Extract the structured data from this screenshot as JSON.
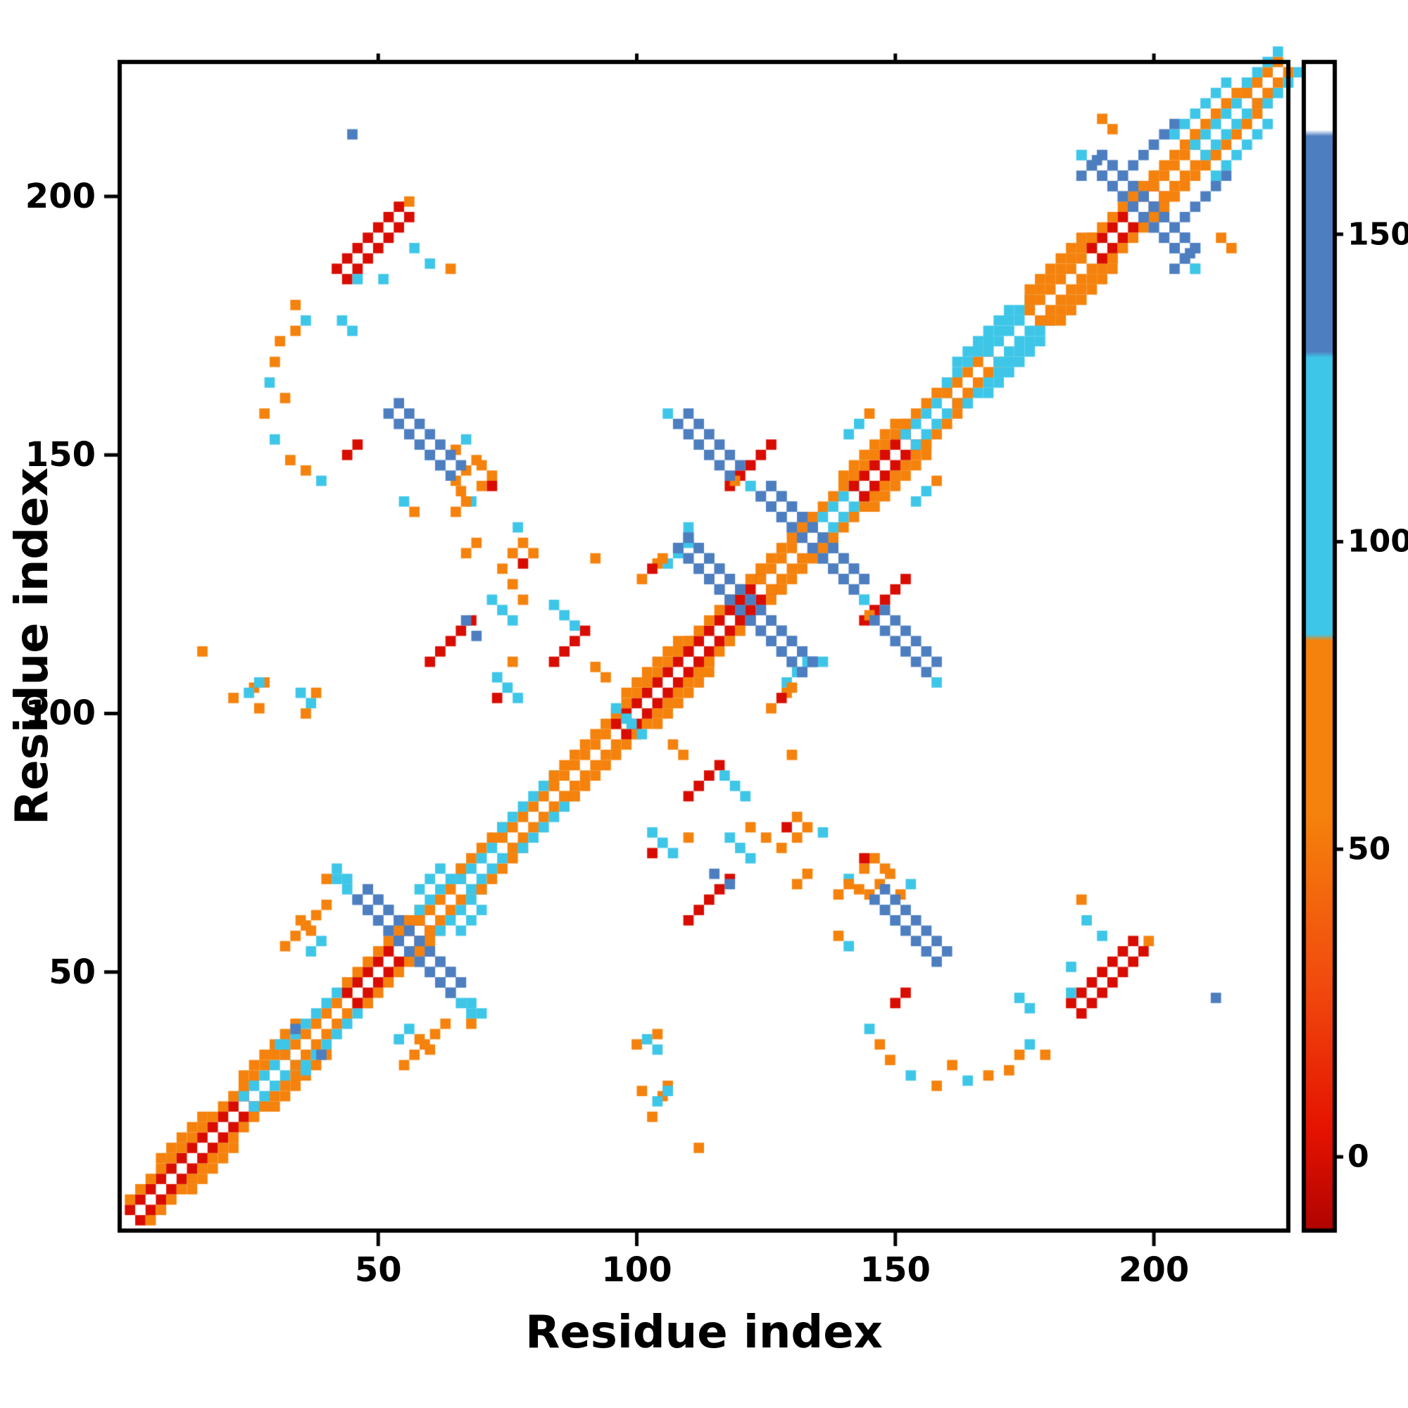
{
  "figure": {
    "background": "#ffffff"
  },
  "chart_data": {
    "type": "heatmap",
    "title": "",
    "xlabel": "Residue index",
    "ylabel": "Residue index",
    "xlim": [
      0,
      226
    ],
    "ylim": [
      0,
      226
    ],
    "xticks": [
      50,
      100,
      150,
      200
    ],
    "yticks": [
      50,
      100,
      150,
      200
    ],
    "grid": false,
    "legend_position": "none",
    "symmetric": true,
    "cell": 2,
    "colormap": [
      {
        "max": 18,
        "color": "#d90c00"
      },
      {
        "max": 42,
        "color": "#ee4009"
      },
      {
        "max": 84,
        "color": "#f5820c"
      },
      {
        "max": 130,
        "color": "#3ec6e8"
      },
      {
        "max": 166,
        "color": "#4d7ec0"
      },
      {
        "max": 9999,
        "color": "#ffffff"
      }
    ],
    "colorbar": {
      "ticks": [
        0,
        50,
        100,
        150
      ],
      "domain": [
        -12,
        178
      ],
      "gradient": [
        [
          -12,
          "#b00300"
        ],
        [
          4,
          "#e41200"
        ],
        [
          28,
          "#f14a0e"
        ],
        [
          56,
          "#f5820c"
        ],
        [
          84,
          "#f5820c"
        ],
        [
          85,
          "#3ec6e8"
        ],
        [
          130,
          "#3ec6e8"
        ],
        [
          131,
          "#4d7ec0"
        ],
        [
          166,
          "#4d7ec0"
        ],
        [
          167,
          "#ffffff"
        ],
        [
          178,
          "#ffffff"
        ]
      ]
    },
    "diagonal_segments": [
      [
        2,
        24,
        10,
        50
      ],
      [
        24,
        32,
        100,
        50
      ],
      [
        32,
        44,
        50,
        100
      ],
      [
        44,
        58,
        10,
        50
      ],
      [
        58,
        66,
        50,
        100
      ],
      [
        66,
        74,
        100,
        50
      ],
      [
        74,
        84,
        50,
        100
      ],
      [
        84,
        96,
        50,
        50
      ],
      [
        96,
        110,
        10,
        50
      ],
      [
        110,
        124,
        10,
        50
      ],
      [
        124,
        134,
        50,
        50
      ],
      [
        134,
        142,
        100,
        50
      ],
      [
        142,
        152,
        10,
        50
      ],
      [
        152,
        160,
        100,
        50
      ],
      [
        160,
        168,
        50,
        100
      ],
      [
        168,
        176,
        100,
        100
      ],
      [
        176,
        188,
        50,
        50
      ],
      [
        188,
        200,
        10,
        50
      ],
      [
        200,
        208,
        50,
        50
      ],
      [
        208,
        218,
        100,
        50
      ],
      [
        218,
        224,
        50,
        100
      ]
    ],
    "antidiagonal_segments": [
      [
        46,
        64,
        64,
        46,
        150,
        2
      ],
      [
        108,
        132,
        132,
        108,
        150,
        2
      ],
      [
        124,
        142,
        142,
        124,
        150,
        2
      ],
      [
        188,
        206,
        206,
        188,
        150,
        2
      ],
      [
        52,
        158,
        64,
        146,
        150,
        2
      ],
      [
        108,
        156,
        118,
        146,
        150,
        2
      ]
    ],
    "offdiagonal_segments": [
      [
        42,
        186,
        54,
        198,
        5,
        2
      ],
      [
        60,
        110,
        67,
        117,
        10,
        1
      ],
      [
        118,
        144,
        126,
        152,
        10,
        1
      ],
      [
        84,
        110,
        89,
        115,
        10,
        1
      ],
      [
        98,
        104,
        108,
        114,
        50,
        1
      ],
      [
        140,
        146,
        150,
        156,
        50,
        1
      ],
      [
        162,
        168,
        172,
        178,
        100,
        1
      ],
      [
        24,
        30,
        34,
        40,
        50,
        1
      ],
      [
        8,
        14,
        16,
        22,
        50,
        1
      ],
      [
        176,
        182,
        186,
        192,
        50,
        1
      ],
      [
        204,
        212,
        214,
        222,
        100,
        1
      ],
      [
        196,
        206,
        204,
        214,
        150,
        1
      ]
    ],
    "points": [
      [
        34,
        179,
        50
      ],
      [
        36,
        176,
        100
      ],
      [
        31,
        172,
        50
      ],
      [
        30,
        168,
        50
      ],
      [
        29,
        164,
        100
      ],
      [
        28,
        158,
        50
      ],
      [
        30,
        153,
        100
      ],
      [
        33,
        149,
        50
      ],
      [
        36,
        147,
        50
      ],
      [
        39,
        145,
        100
      ],
      [
        34,
        174,
        50
      ],
      [
        32,
        161,
        50
      ],
      [
        46,
        184,
        100
      ],
      [
        57,
        190,
        100
      ],
      [
        60,
        187,
        100
      ],
      [
        64,
        186,
        50
      ],
      [
        56,
        199,
        50
      ],
      [
        70,
        148,
        50
      ],
      [
        72,
        146,
        50
      ],
      [
        70,
        144,
        50
      ],
      [
        72,
        144,
        10
      ],
      [
        44,
        150,
        10
      ],
      [
        46,
        152,
        10
      ],
      [
        78,
        133,
        50
      ],
      [
        80,
        131,
        50
      ],
      [
        78,
        129,
        10
      ],
      [
        84,
        121,
        100
      ],
      [
        86,
        119,
        100
      ],
      [
        88,
        117,
        100
      ],
      [
        92,
        109,
        50
      ],
      [
        94,
        107,
        50
      ],
      [
        96,
        101,
        100
      ],
      [
        98,
        99,
        100
      ],
      [
        26,
        105,
        50
      ],
      [
        28,
        106,
        50
      ],
      [
        35,
        104,
        100
      ],
      [
        37,
        102,
        100
      ],
      [
        36,
        100,
        50
      ],
      [
        38,
        104,
        50
      ],
      [
        55,
        141,
        100
      ],
      [
        57,
        139,
        50
      ],
      [
        66,
        143,
        50
      ],
      [
        68,
        141,
        100
      ],
      [
        74,
        120,
        100
      ],
      [
        76,
        118,
        100
      ],
      [
        72,
        122,
        100
      ],
      [
        67,
        131,
        50
      ],
      [
        69,
        133,
        50
      ],
      [
        103,
        77,
        100
      ],
      [
        105,
        75,
        100
      ],
      [
        107,
        73,
        100
      ],
      [
        103,
        73,
        10
      ],
      [
        110,
        76,
        50
      ],
      [
        115,
        69,
        150
      ],
      [
        118,
        67,
        150
      ],
      [
        122,
        78,
        50
      ],
      [
        125,
        76,
        50
      ],
      [
        128,
        74,
        50
      ],
      [
        131,
        76,
        50
      ],
      [
        136,
        77,
        100
      ],
      [
        139,
        65,
        50
      ],
      [
        141,
        67,
        50
      ],
      [
        147,
        67,
        50
      ],
      [
        149,
        69,
        50
      ],
      [
        151,
        65,
        50
      ],
      [
        153,
        67,
        100
      ],
      [
        148,
        62,
        100
      ],
      [
        150,
        60,
        100
      ],
      [
        174,
        45,
        100
      ],
      [
        176,
        43,
        100
      ],
      [
        184,
        51,
        100
      ],
      [
        212,
        45,
        150
      ],
      [
        192,
        213,
        50
      ],
      [
        190,
        215,
        50
      ],
      [
        189,
        207,
        150
      ],
      [
        186,
        204,
        150
      ],
      [
        101,
        27,
        50
      ],
      [
        104,
        25,
        100
      ],
      [
        106,
        27,
        100
      ],
      [
        103,
        22,
        50
      ],
      [
        112,
        16,
        50
      ],
      [
        56,
        39,
        100
      ],
      [
        58,
        37,
        50
      ],
      [
        54,
        37,
        100
      ],
      [
        60,
        35,
        50
      ],
      [
        36,
        59,
        50
      ],
      [
        38,
        61,
        50
      ],
      [
        40,
        63,
        50
      ],
      [
        32,
        55,
        50
      ],
      [
        34,
        57,
        50
      ],
      [
        31,
        36,
        100
      ],
      [
        34,
        39,
        150
      ],
      [
        106,
        129,
        100
      ],
      [
        108,
        131,
        100
      ],
      [
        104,
        129,
        50
      ],
      [
        110,
        133,
        100
      ],
      [
        92,
        130,
        50
      ],
      [
        128,
        103,
        10
      ],
      [
        130,
        105,
        50
      ],
      [
        126,
        101,
        50
      ],
      [
        154,
        141,
        100
      ],
      [
        156,
        143,
        100
      ],
      [
        158,
        145,
        50
      ],
      [
        42,
        70,
        100
      ],
      [
        44,
        68,
        100
      ],
      [
        66,
        44,
        100
      ],
      [
        68,
        42,
        100
      ],
      [
        68,
        40,
        50
      ],
      [
        58,
        66,
        100
      ],
      [
        60,
        68,
        100
      ],
      [
        62,
        70,
        100
      ],
      [
        110,
        136,
        100
      ],
      [
        134,
        110,
        100
      ],
      [
        122,
        144,
        100
      ],
      [
        144,
        122,
        100
      ],
      [
        186,
        208,
        100
      ],
      [
        208,
        186,
        100
      ],
      [
        65,
        145,
        50
      ],
      [
        106,
        158,
        100
      ],
      [
        119,
        145,
        50
      ]
    ]
  }
}
